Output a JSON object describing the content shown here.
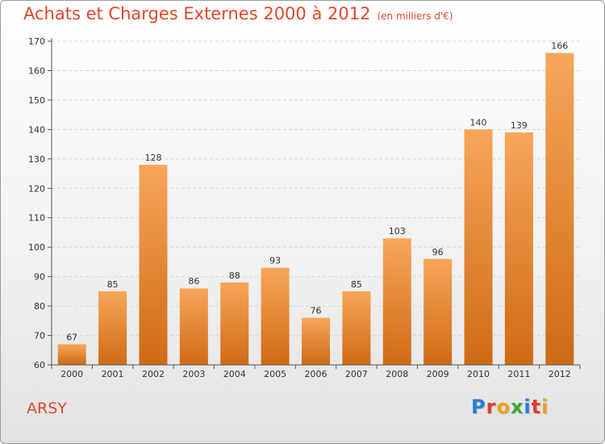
{
  "header": {
    "title": "Achats et Charges Externes 2000 à 2012",
    "unit": "(en milliers d'€)"
  },
  "footer": {
    "commune": "ARSY",
    "logo_text": "Proxiti",
    "logo_letters": [
      {
        "char": "P",
        "color": "#2a7fd4"
      },
      {
        "char": "r",
        "color": "#e53a2a"
      },
      {
        "char": "o",
        "color": "#f0a21c"
      },
      {
        "char": "x",
        "color": "#3aaa3a"
      },
      {
        "char": "i",
        "color": "#2a7fd4"
      },
      {
        "char": "t",
        "color": "#e53a2a"
      },
      {
        "char": "i",
        "color": "#f0a21c"
      }
    ]
  },
  "colors": {
    "title": "#e0482c",
    "bar_top": "#f7a65a",
    "bar_bottom": "#cf6a14",
    "grid": "#d6d6d6",
    "axis": "#555555"
  },
  "chart_data": {
    "type": "bar",
    "title": "Achats et Charges Externes 2000 à 2012",
    "xlabel": "",
    "ylabel": "",
    "categories": [
      "2000",
      "2001",
      "2002",
      "2003",
      "2004",
      "2005",
      "2006",
      "2007",
      "2008",
      "2009",
      "2010",
      "2011",
      "2012"
    ],
    "values": [
      67,
      85,
      128,
      86,
      88,
      93,
      76,
      85,
      103,
      96,
      140,
      139,
      166
    ],
    "ylim": [
      60,
      170
    ],
    "yticks": [
      60,
      70,
      80,
      90,
      100,
      110,
      120,
      130,
      140,
      150,
      160,
      170
    ],
    "grid": true,
    "legend": "none"
  }
}
